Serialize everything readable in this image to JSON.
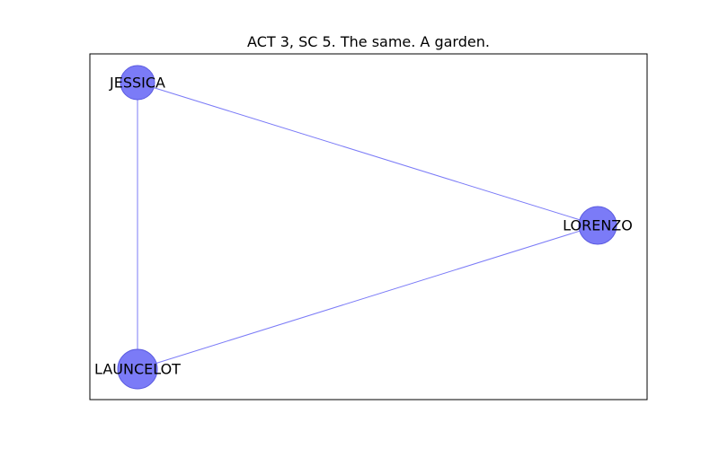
{
  "title": "ACT 3, SC 5. The same. A garden.",
  "colors": {
    "node_fill": "#7b7bf7",
    "node_stroke": "#5c5ce0",
    "edge": "#7b7bf7"
  },
  "nodes": [
    {
      "id": "JESSICA",
      "label": "JESSICA"
    },
    {
      "id": "LORENZO",
      "label": "LORENZO"
    },
    {
      "id": "LAUNCELOT",
      "label": "LAUNCELOT"
    }
  ],
  "edges": [
    {
      "source": "JESSICA",
      "target": "LORENZO"
    },
    {
      "source": "JESSICA",
      "target": "LAUNCELOT"
    },
    {
      "source": "LAUNCELOT",
      "target": "LORENZO"
    }
  ]
}
